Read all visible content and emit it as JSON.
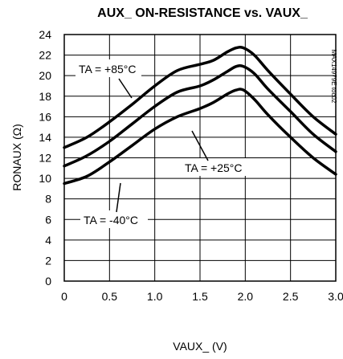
{
  "chart_data": {
    "type": "line",
    "title": "AUX_ ON-RESISTANCE vs. VAUX_",
    "xlabel": "VAUX_ (V)",
    "ylabel": "RONAUX (Ω)",
    "xlim": [
      0,
      3.0
    ],
    "ylim": [
      0,
      24
    ],
    "xticks": [
      "0",
      "0.5",
      "1.0",
      "1.5",
      "2.0",
      "2.5",
      "3.0"
    ],
    "yticks": [
      "0",
      "2",
      "4",
      "6",
      "8",
      "10",
      "12",
      "14",
      "16",
      "18",
      "20",
      "22",
      "24"
    ],
    "grid": true,
    "watermark": "MAX14979E toc02",
    "annotations": [
      "TA = +85°C",
      "TA = +25°C",
      "TA = -40°C"
    ],
    "series": [
      {
        "name": "TA = +85°C",
        "x": [
          0,
          0.25,
          0.5,
          0.75,
          1.0,
          1.25,
          1.5,
          1.65,
          1.8,
          1.9,
          1.98,
          2.1,
          2.25,
          2.5,
          2.75,
          3.0
        ],
        "y": [
          13.0,
          14.0,
          15.5,
          17.2,
          19.0,
          20.5,
          21.1,
          21.5,
          22.3,
          22.7,
          22.7,
          22.0,
          20.5,
          18.2,
          16.0,
          14.3
        ]
      },
      {
        "name": "TA = +25°C",
        "x": [
          0,
          0.25,
          0.5,
          0.75,
          1.0,
          1.25,
          1.5,
          1.65,
          1.8,
          1.9,
          1.98,
          2.1,
          2.25,
          2.5,
          2.75,
          3.0
        ],
        "y": [
          11.2,
          12.2,
          13.6,
          15.3,
          17.0,
          18.4,
          19.0,
          19.6,
          20.4,
          20.9,
          20.9,
          20.2,
          18.7,
          16.5,
          14.3,
          12.6
        ]
      },
      {
        "name": "TA = -40°C",
        "x": [
          0,
          0.25,
          0.5,
          0.75,
          1.0,
          1.25,
          1.5,
          1.65,
          1.8,
          1.9,
          1.98,
          2.1,
          2.25,
          2.5,
          2.75,
          3.0
        ],
        "y": [
          9.5,
          10.2,
          11.6,
          13.2,
          14.8,
          16.0,
          16.8,
          17.4,
          18.2,
          18.6,
          18.6,
          17.7,
          16.2,
          14.0,
          12.0,
          10.4
        ]
      }
    ]
  }
}
